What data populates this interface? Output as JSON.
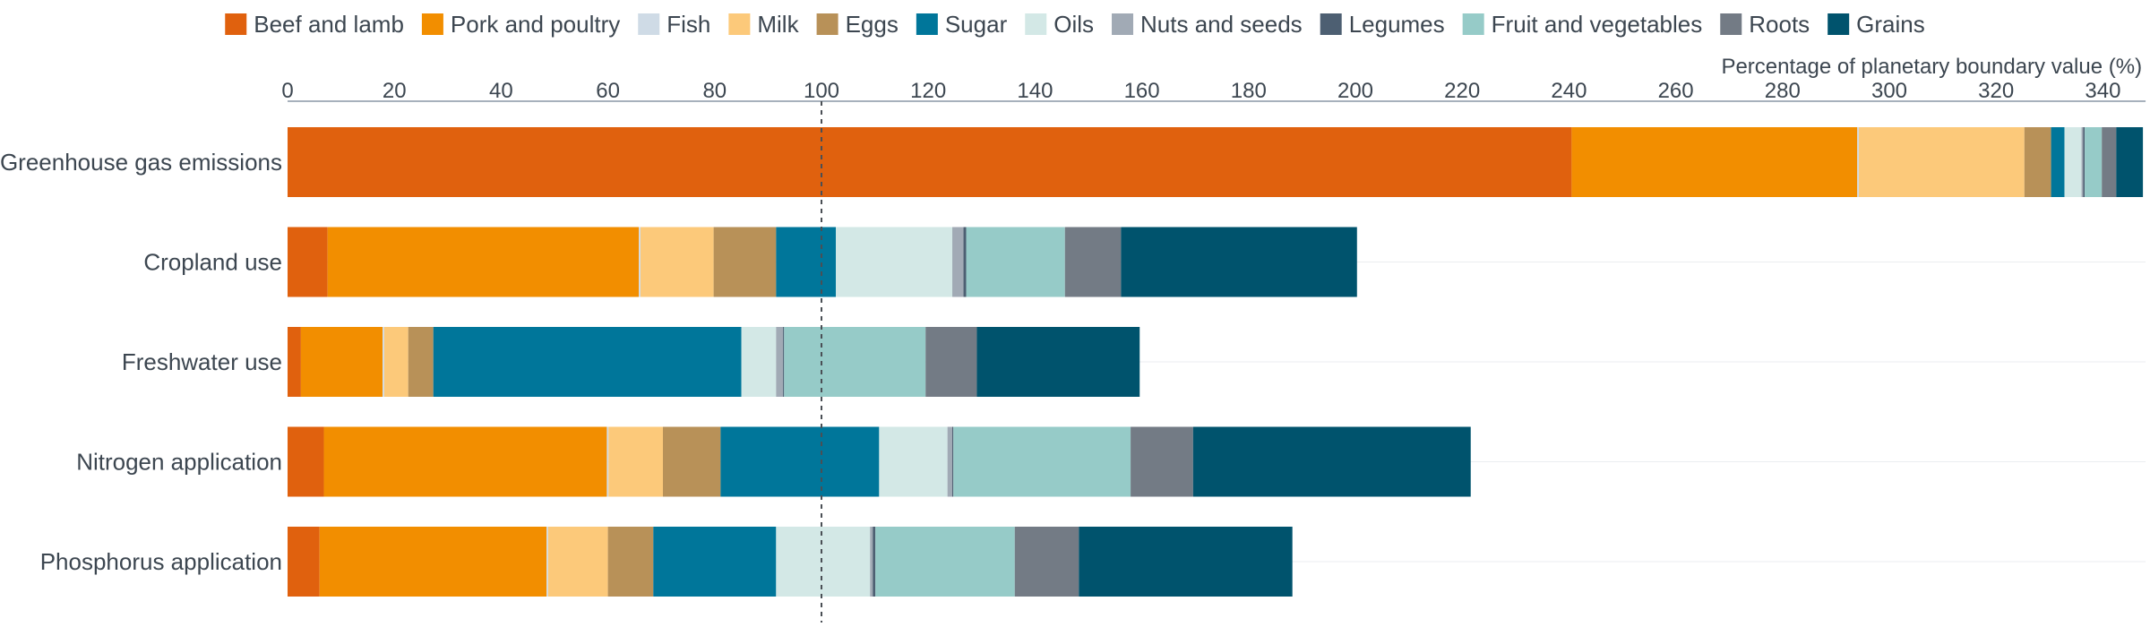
{
  "chart_data": {
    "type": "bar",
    "orientation": "horizontal",
    "stacked": true,
    "xlabel": "Percentage of planetary boundary value (%)",
    "xlim": [
      0,
      348
    ],
    "xticks": [
      0,
      20,
      40,
      60,
      80,
      100,
      120,
      140,
      160,
      180,
      200,
      220,
      240,
      260,
      280,
      300,
      320,
      340
    ],
    "reference_line": 100,
    "grid": false,
    "legend_position": "top",
    "categories": [
      "Greenhouse gas emissions",
      "Cropland use",
      "Freshwater use",
      "Nitrogen application",
      "Phosphorus application"
    ],
    "series": [
      {
        "name": "Beef and lamb",
        "color": "#e0610e",
        "values": [
          240.5,
          7.5,
          2.5,
          6.8,
          6.0
        ]
      },
      {
        "name": "Pork and poultry",
        "color": "#f28e00",
        "values": [
          53.5,
          58.3,
          15.3,
          53.0,
          42.5
        ]
      },
      {
        "name": "Fish",
        "color": "#cfdbe6",
        "values": [
          0.3,
          0.3,
          0.3,
          0.3,
          0.3
        ]
      },
      {
        "name": "Milk",
        "color": "#fcc97a",
        "values": [
          31.0,
          13.7,
          4.5,
          10.2,
          11.2
        ]
      },
      {
        "name": "Eggs",
        "color": "#b89158",
        "values": [
          5.0,
          11.7,
          4.7,
          10.8,
          8.5
        ]
      },
      {
        "name": "Sugar",
        "color": "#00769a",
        "values": [
          2.5,
          11.2,
          57.7,
          29.7,
          23.0
        ]
      },
      {
        "name": "Oils",
        "color": "#d3e8e6",
        "values": [
          3.2,
          21.8,
          6.5,
          12.8,
          17.6
        ]
      },
      {
        "name": "Nuts and seeds",
        "color": "#a1aab5",
        "values": [
          0.3,
          2.1,
          1.3,
          0.9,
          0.5
        ]
      },
      {
        "name": "Legumes",
        "color": "#4d5f72",
        "values": [
          0.3,
          0.5,
          0.2,
          0.2,
          0.5
        ]
      },
      {
        "name": "Fruit and vegetables",
        "color": "#96cbc8",
        "values": [
          3.2,
          18.5,
          26.5,
          33.2,
          26.1
        ]
      },
      {
        "name": "Roots",
        "color": "#737b85",
        "values": [
          2.7,
          10.5,
          9.6,
          11.7,
          12.0
        ]
      },
      {
        "name": "Grains",
        "color": "#00536d",
        "values": [
          5.0,
          44.2,
          30.5,
          52.0,
          40.0
        ]
      }
    ]
  }
}
